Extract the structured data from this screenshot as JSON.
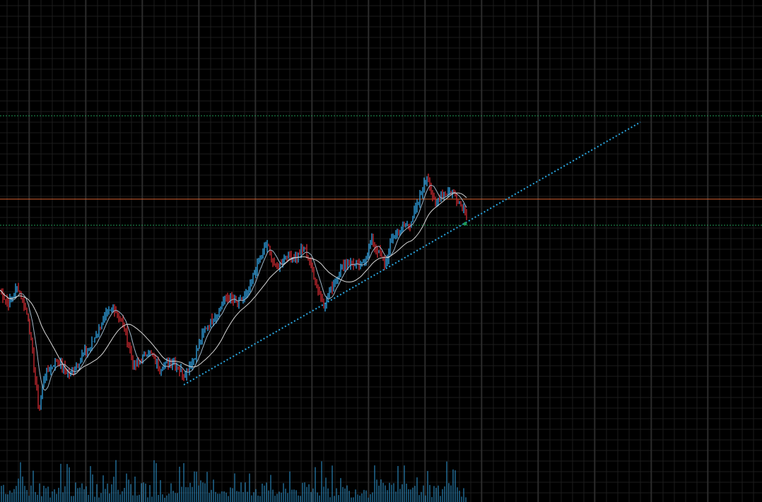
{
  "chart_data": {
    "type": "candlestick",
    "title": "",
    "xlabel": "",
    "ylabel": "",
    "grid": true,
    "ylim": [
      0,
      640
    ],
    "colors": {
      "background": "#000000",
      "grid_major": "#3a3a3a",
      "grid_minor": "#1c1c1c",
      "up": "#2f9bd8",
      "down": "#c0272d",
      "ma_fast": "#9fb6c8",
      "ma_slow": "#d8d8d8",
      "hline_price": "#d8622f",
      "hline_dotted": "#1f9a55",
      "trendline": "#2aa7e0",
      "volume": "#2f9bd8"
    },
    "keypoints": [
      [
        0,
        300
      ],
      [
        12,
        280
      ],
      [
        25,
        305
      ],
      [
        40,
        260
      ],
      [
        55,
        130
      ],
      [
        63,
        180
      ],
      [
        80,
        200
      ],
      [
        100,
        180
      ],
      [
        115,
        205
      ],
      [
        128,
        220
      ],
      [
        140,
        245
      ],
      [
        150,
        265
      ],
      [
        162,
        275
      ],
      [
        175,
        250
      ],
      [
        190,
        190
      ],
      [
        210,
        215
      ],
      [
        225,
        190
      ],
      [
        245,
        200
      ],
      [
        260,
        180
      ],
      [
        275,
        205
      ],
      [
        290,
        245
      ],
      [
        305,
        265
      ],
      [
        320,
        290
      ],
      [
        335,
        280
      ],
      [
        350,
        295
      ],
      [
        365,
        340
      ],
      [
        378,
        365
      ],
      [
        390,
        330
      ],
      [
        405,
        350
      ],
      [
        418,
        345
      ],
      [
        430,
        360
      ],
      [
        440,
        335
      ],
      [
        450,
        300
      ],
      [
        458,
        280
      ],
      [
        470,
        305
      ],
      [
        485,
        335
      ],
      [
        495,
        340
      ],
      [
        510,
        330
      ],
      [
        525,
        370
      ],
      [
        532,
        360
      ],
      [
        545,
        335
      ],
      [
        555,
        375
      ],
      [
        565,
        385
      ],
      [
        580,
        395
      ],
      [
        592,
        425
      ],
      [
        605,
        465
      ],
      [
        615,
        420
      ],
      [
        625,
        438
      ],
      [
        640,
        440
      ],
      [
        650,
        425
      ],
      [
        660,
        408
      ]
    ],
    "ma_windows": [
      8,
      28
    ],
    "horizontal_lines": [
      {
        "y": 429,
        "style": "solid",
        "color_key": "hline_price"
      },
      {
        "y": 547,
        "style": "dotted",
        "color_key": "hline_dotted"
      },
      {
        "y": 392,
        "style": "dotted",
        "color_key": "hline_dotted"
      }
    ],
    "trendline": {
      "x1": 260,
      "y1": 166,
      "x2": 906,
      "y2": 538
    },
    "trendline_marker": {
      "x": 658,
      "y": 394
    },
    "volume_max": 60,
    "seed": 7
  }
}
